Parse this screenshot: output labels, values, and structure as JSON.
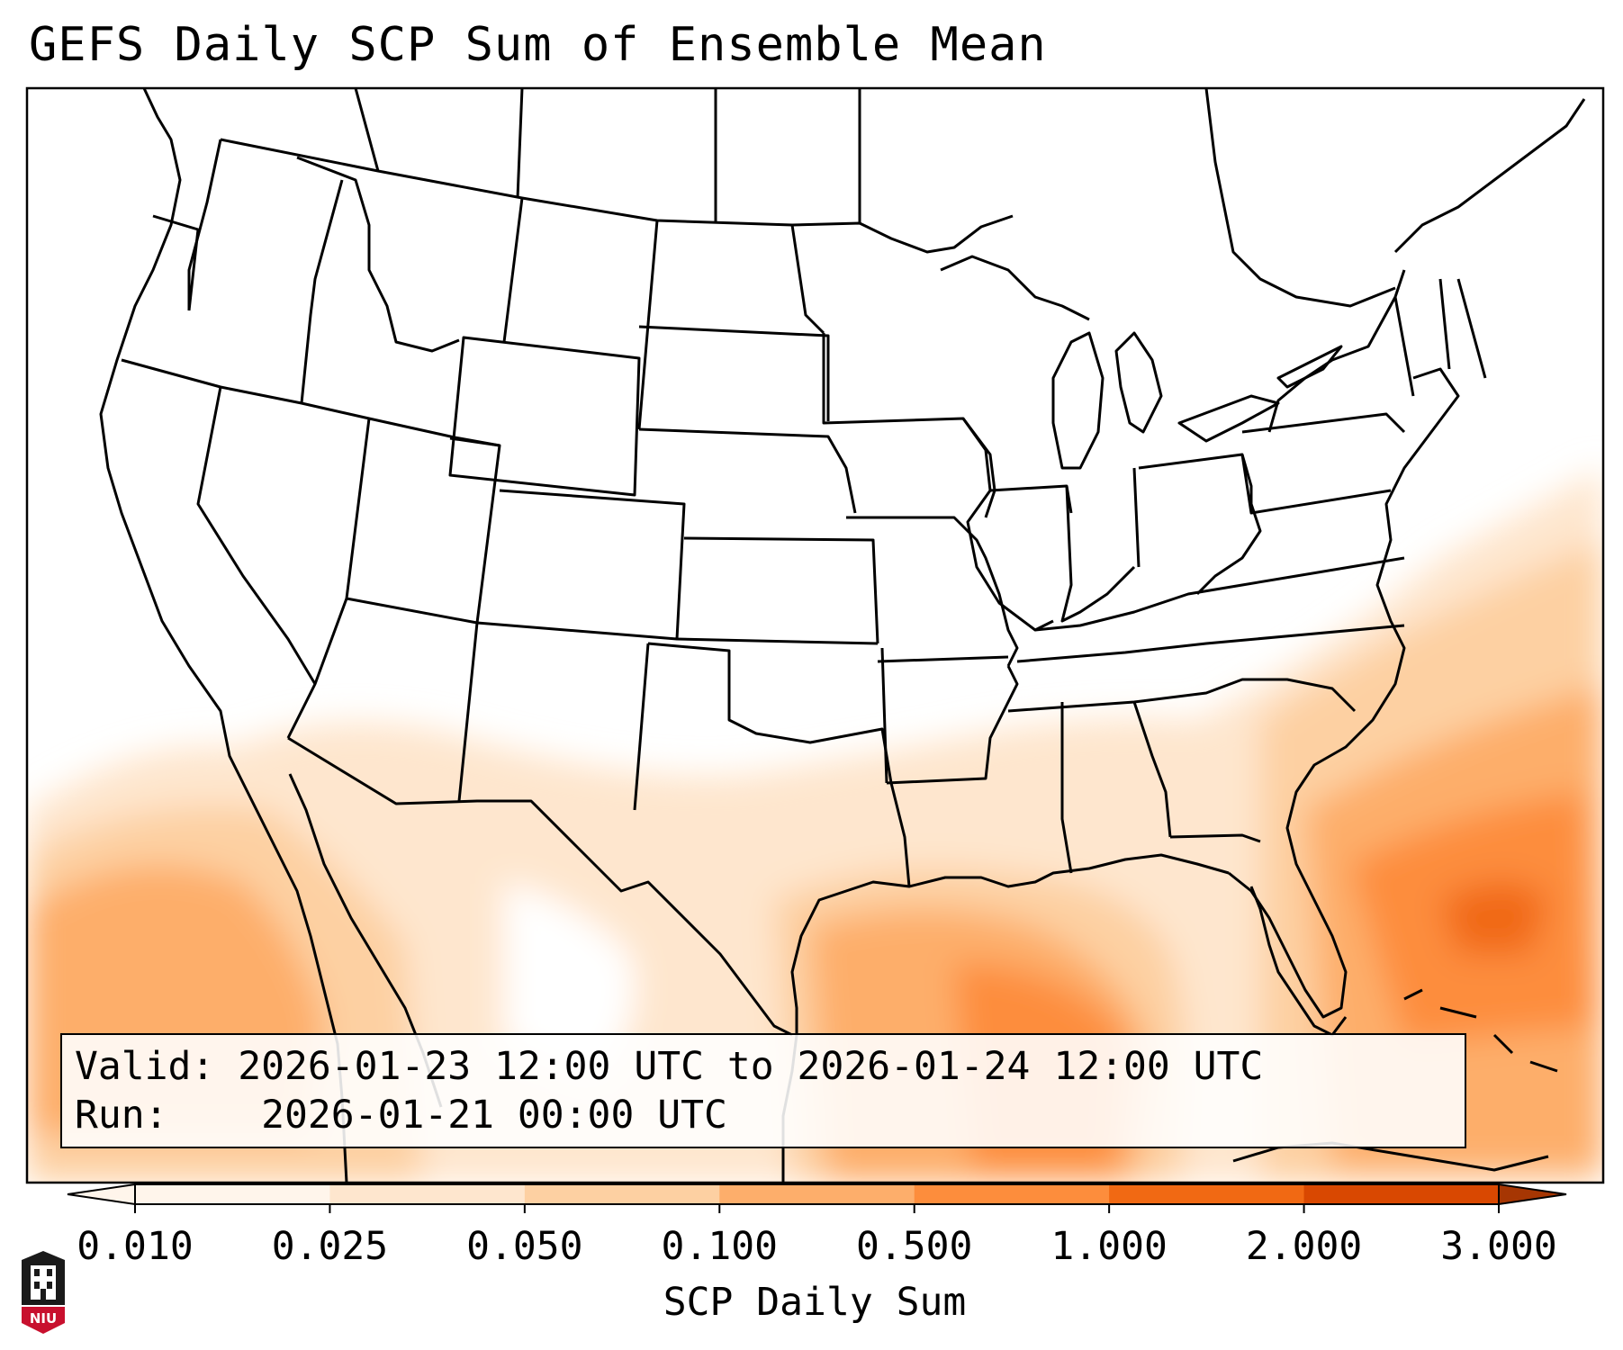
{
  "title": "GEFS Daily SCP Sum of Ensemble Mean",
  "info": {
    "valid_label": "Valid:",
    "valid_text": "2026-01-23 12:00 UTC to 2026-01-24 12:00 UTC",
    "run_label": "Run:",
    "run_text": "2026-01-21 00:00 UTC"
  },
  "colorbar": {
    "title": "SCP Daily Sum",
    "ticks": [
      "0.010",
      "0.025",
      "0.050",
      "0.100",
      "0.500",
      "1.000",
      "2.000",
      "3.000"
    ],
    "colors": [
      "#fff5eb",
      "#fee6ce",
      "#fdd0a2",
      "#fdae6b",
      "#fd8d3c",
      "#f16913",
      "#d94801"
    ],
    "extend": "both"
  },
  "logo": {
    "text": "NIU",
    "color": "#c8102e"
  }
}
